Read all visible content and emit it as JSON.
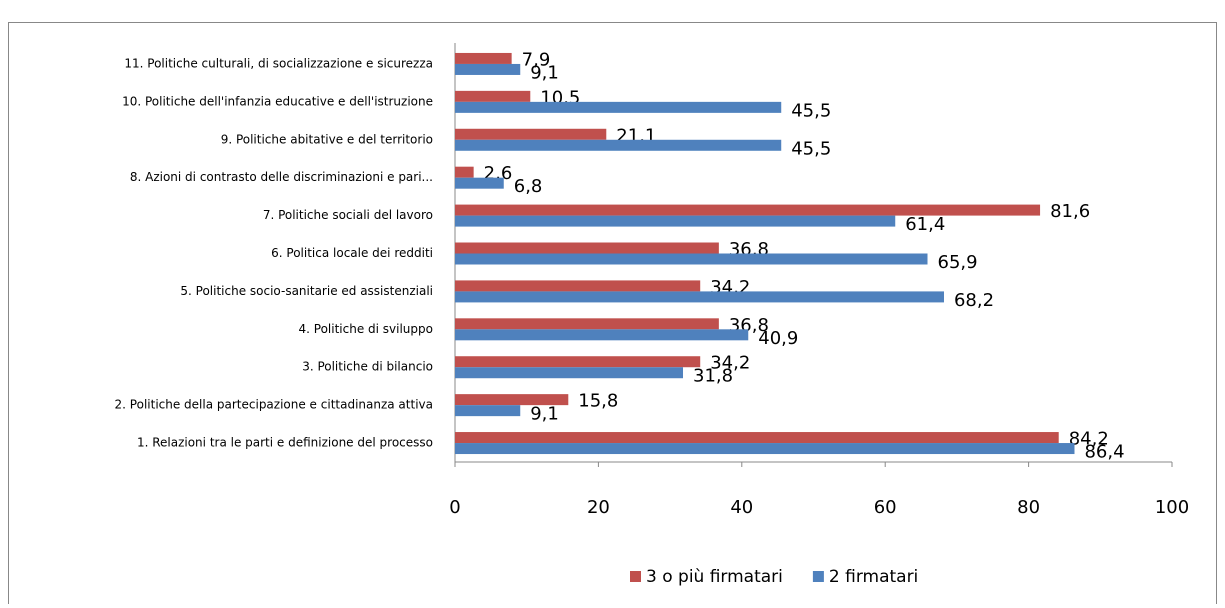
{
  "chart_data": {
    "type": "barh",
    "categories": [
      "1. Relazioni tra le parti e definizione del processo",
      "2. Politiche della partecipazione e cittadinanza attiva",
      "3. Politiche di bilancio",
      "4. Politiche di sviluppo",
      "5. Politiche socio-sanitarie ed assistenziali",
      "6. Politica locale dei redditi",
      "7. Politiche sociali del lavoro",
      "8. Azioni di contrasto delle discriminazioni e pari...",
      "9. Politiche abitative e del territorio",
      "10. Politiche dell'infanzia educative e dell'istruzione",
      "11. Politiche culturali, di socializzazione e sicurezza"
    ],
    "series": [
      {
        "name": "3 o più firmatari",
        "color": "#c0504d",
        "values": [
          84.2,
          15.8,
          34.2,
          36.8,
          34.2,
          36.8,
          81.6,
          2.6,
          21.1,
          10.5,
          7.9
        ],
        "value_labels": [
          "84,2",
          "15,8",
          "34,2",
          "36,8",
          "34,2",
          "36,8",
          "81,6",
          "2,6",
          "21,1",
          "10,5",
          "7,9"
        ]
      },
      {
        "name": "2 firmatari",
        "color": "#4f81bd",
        "values": [
          86.4,
          9.1,
          31.8,
          40.9,
          68.2,
          65.9,
          61.4,
          6.8,
          45.5,
          45.5,
          9.1
        ],
        "value_labels": [
          "86,4",
          "9,1",
          "31,8",
          "40,9",
          "68,2",
          "65,9",
          "61,4",
          "6,8",
          "45,5",
          "45,5",
          "9,1"
        ]
      }
    ],
    "xlim": [
      0,
      100
    ],
    "xticks": [
      0,
      20,
      40,
      60,
      80,
      100
    ],
    "legend": "bottom"
  }
}
